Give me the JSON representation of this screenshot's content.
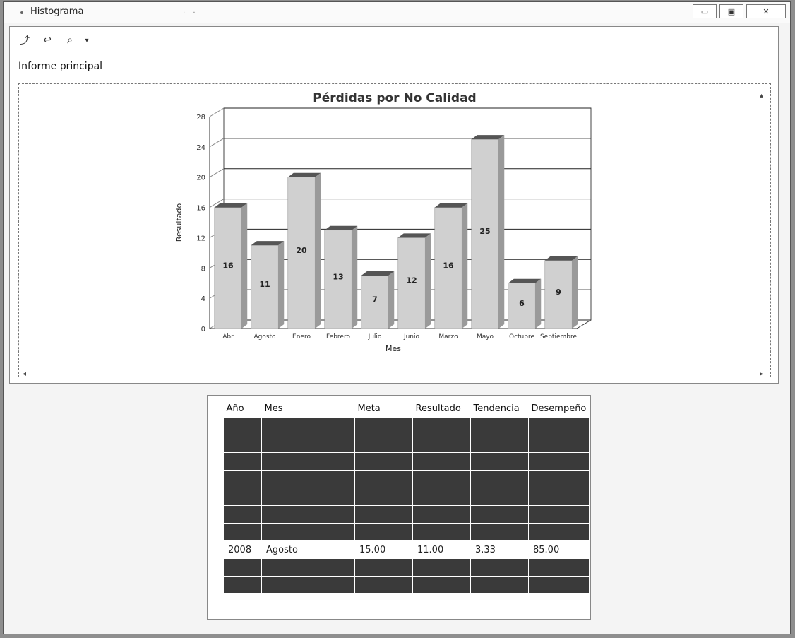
{
  "window": {
    "title": "Histograma"
  },
  "toolbar": {
    "section_label": "Informe principal"
  },
  "chart_data": {
    "type": "bar",
    "title": "Pérdidas por No Calidad",
    "xlabel": "Mes",
    "ylabel": "Resultado",
    "categories": [
      "Abr",
      "Agosto",
      "Enero",
      "Febrero",
      "Julio",
      "Junio",
      "Marzo",
      "Mayo",
      "Octubre",
      "Septiembre"
    ],
    "values": [
      16,
      11,
      20,
      13,
      7,
      12,
      16,
      25,
      6,
      9
    ],
    "ytick_labels": [
      "28",
      "24",
      "20",
      "16",
      "12",
      "8",
      "4",
      "0"
    ],
    "ylim": [
      0,
      28
    ],
    "grid": true
  },
  "table": {
    "headers": [
      "Año",
      "Mes",
      "Meta",
      "Resultado",
      "Tendencia",
      "Desempeño"
    ],
    "rows": [
      {
        "style": "dark",
        "cells": [
          "",
          "",
          "",
          "",
          "",
          ""
        ]
      },
      {
        "style": "dark",
        "cells": [
          "",
          "",
          "",
          "",
          "",
          ""
        ]
      },
      {
        "style": "dark",
        "cells": [
          "",
          "",
          "",
          "",
          "",
          ""
        ]
      },
      {
        "style": "dark",
        "cells": [
          "",
          "",
          "",
          "",
          "",
          ""
        ]
      },
      {
        "style": "dark",
        "cells": [
          "",
          "",
          "",
          "",
          "",
          ""
        ]
      },
      {
        "style": "dark",
        "cells": [
          "",
          "",
          "",
          "",
          "",
          ""
        ]
      },
      {
        "style": "dark",
        "cells": [
          "",
          "",
          "",
          "",
          "",
          ""
        ]
      },
      {
        "style": "light",
        "cells": [
          "2008",
          "Agosto",
          "15.00",
          "11.00",
          "3.33",
          "85.00"
        ]
      },
      {
        "style": "dark",
        "cells": [
          "",
          "",
          "",
          "",
          "",
          ""
        ]
      },
      {
        "style": "dark",
        "cells": [
          "",
          "",
          "",
          "",
          "",
          ""
        ]
      }
    ]
  }
}
